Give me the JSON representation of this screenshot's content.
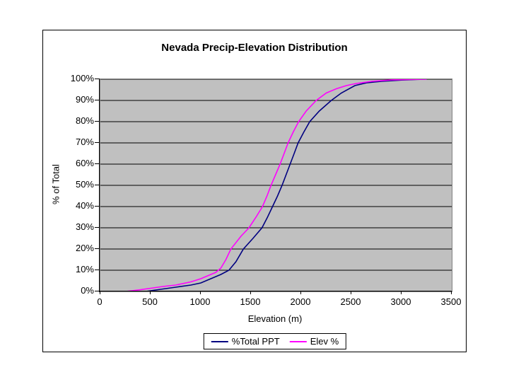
{
  "chart_data": {
    "type": "line",
    "title": "Nevada Precip-Elevation Distribution",
    "xlabel": "Elevation (m)",
    "ylabel": "% of Total",
    "xlim": [
      0,
      3500
    ],
    "ylim": [
      0,
      100
    ],
    "grid": "horizontal",
    "legend_position": "bottom",
    "plot_bg_color": "#c0c0c0",
    "gridline_color": "#000000",
    "x_ticks": [
      {
        "v": 0,
        "label": "0"
      },
      {
        "v": 500,
        "label": "500"
      },
      {
        "v": 1000,
        "label": "1000"
      },
      {
        "v": 1500,
        "label": "1500"
      },
      {
        "v": 2000,
        "label": "2000"
      },
      {
        "v": 2500,
        "label": "2500"
      },
      {
        "v": 3000,
        "label": "3000"
      },
      {
        "v": 3500,
        "label": "3500"
      }
    ],
    "y_ticks": [
      {
        "v": 0,
        "label": "0%"
      },
      {
        "v": 10,
        "label": "10%"
      },
      {
        "v": 20,
        "label": "20%"
      },
      {
        "v": 30,
        "label": "30%"
      },
      {
        "v": 40,
        "label": "40%"
      },
      {
        "v": 50,
        "label": "50%"
      },
      {
        "v": 60,
        "label": "60%"
      },
      {
        "v": 70,
        "label": "70%"
      },
      {
        "v": 80,
        "label": "80%"
      },
      {
        "v": 90,
        "label": "90%"
      },
      {
        "v": 100,
        "label": "100%"
      }
    ],
    "series": [
      {
        "name": "%Total PPT",
        "color": "#000080",
        "points": [
          [
            450,
            0
          ],
          [
            600,
            1
          ],
          [
            750,
            2
          ],
          [
            900,
            3
          ],
          [
            1000,
            4
          ],
          [
            1100,
            6
          ],
          [
            1200,
            8
          ],
          [
            1280,
            10
          ],
          [
            1350,
            14
          ],
          [
            1425,
            20
          ],
          [
            1520,
            25
          ],
          [
            1610,
            30
          ],
          [
            1665,
            35
          ],
          [
            1715,
            40
          ],
          [
            1765,
            45
          ],
          [
            1810,
            50
          ],
          [
            1850,
            55
          ],
          [
            1890,
            60
          ],
          [
            1930,
            65
          ],
          [
            1970,
            70
          ],
          [
            2025,
            75
          ],
          [
            2085,
            80
          ],
          [
            2180,
            85
          ],
          [
            2300,
            90
          ],
          [
            2400,
            93.5
          ],
          [
            2535,
            97
          ],
          [
            2650,
            98.3
          ],
          [
            2800,
            99
          ],
          [
            3000,
            99.6
          ],
          [
            3150,
            99.9
          ],
          [
            3250,
            100
          ]
        ]
      },
      {
        "name": "Elev %",
        "color": "#ff00ff",
        "points": [
          [
            250,
            0
          ],
          [
            400,
            0.8
          ],
          [
            500,
            1.5
          ],
          [
            650,
            2.5
          ],
          [
            750,
            3
          ],
          [
            900,
            4.5
          ],
          [
            1000,
            6
          ],
          [
            1100,
            8
          ],
          [
            1150,
            9
          ],
          [
            1200,
            11
          ],
          [
            1250,
            15
          ],
          [
            1300,
            20
          ],
          [
            1400,
            26
          ],
          [
            1480,
            30
          ],
          [
            1550,
            35
          ],
          [
            1615,
            40
          ],
          [
            1660,
            45
          ],
          [
            1700,
            50
          ],
          [
            1745,
            55
          ],
          [
            1790,
            60
          ],
          [
            1830,
            65
          ],
          [
            1870,
            70
          ],
          [
            1920,
            75
          ],
          [
            1975,
            80
          ],
          [
            2050,
            85
          ],
          [
            2150,
            90
          ],
          [
            2250,
            93.5
          ],
          [
            2350,
            95.5
          ],
          [
            2450,
            97
          ],
          [
            2550,
            98
          ],
          [
            2700,
            99
          ],
          [
            2900,
            99.7
          ],
          [
            3100,
            99.9
          ],
          [
            3250,
            100
          ]
        ]
      }
    ]
  }
}
